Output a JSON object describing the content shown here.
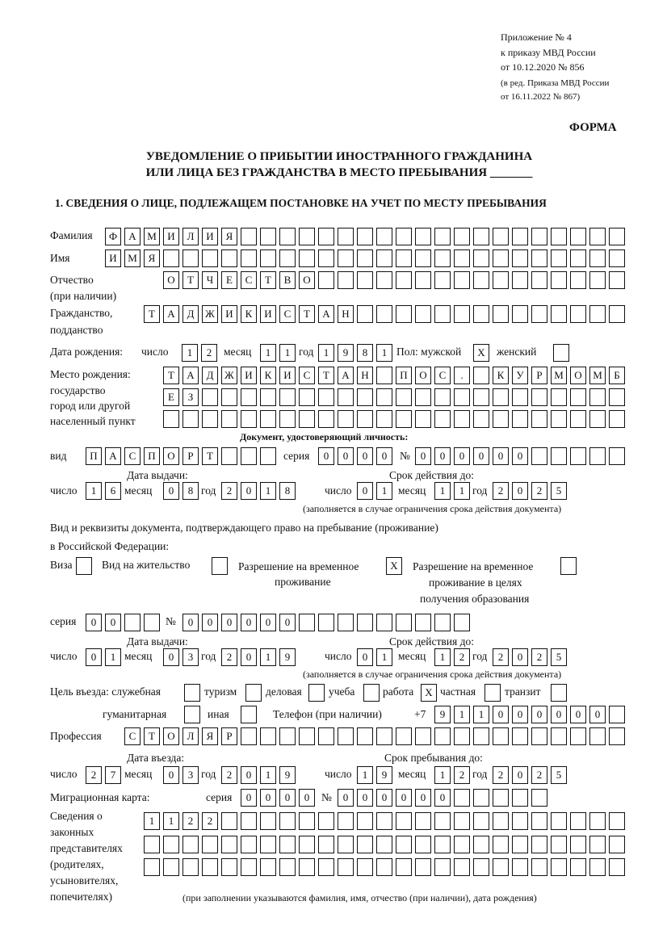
{
  "header": {
    "line1": "Приложение № 4",
    "line2": "к приказу МВД России",
    "line3": "от 10.12.2020 № 856",
    "line4": "(в ред. Приказа МВД России",
    "line5": "от 16.11.2022 № 867)",
    "forma": "ФОРМА"
  },
  "title": {
    "line1": "УВЕДОМЛЕНИЕ О ПРИБЫТИИ ИНОСТРАННОГО ГРАЖДАНИНА",
    "line2": "ИЛИ ЛИЦА БЕЗ ГРАЖДАНСТВА В МЕСТО ПРЕБЫВАНИЯ _______"
  },
  "section1": "1. СВЕДЕНИЯ О ЛИЦЕ, ПОДЛЕЖАЩЕМ ПОСТАНОВКЕ НА УЧЕТ ПО МЕСТУ ПРЕБЫВАНИЯ",
  "labels": {
    "surname": "Фамилия",
    "name": "Имя",
    "patronymic": "Отчество",
    "patronymic2": "(при наличии)",
    "citizenship": "Гражданство,",
    "citizenship2": "подданство",
    "birthdate": "Дата рождения:",
    "day": "число",
    "month": "месяц",
    "year": "год",
    "sex": "Пол: мужской",
    "female": "женский",
    "birthplace": "Место рождения:",
    "bp2": "государство",
    "bp3": "город или другой",
    "bp4": "населенный пункт",
    "iddoc": "Документ, удостоверяющий личность:",
    "kind": "вид",
    "series": "серия",
    "number": "№",
    "issue_date": "Дата выдачи:",
    "valid_until": "Срок действия до:",
    "validity_note": "(заполняется в случае ограничения срока действия документа)",
    "permit1": "Вид и реквизиты документа, подтверждающего право на пребывание (проживание)",
    "permit2": "в Российской Федерации:",
    "visa": "Виза",
    "residence": "Вид на жительство",
    "rvp1": "Разрешение на временное",
    "rvp2": "проживание",
    "rvpe1": "Разрешение на временное",
    "rvpe2": "проживание в целях",
    "rvpe3": "получения образования",
    "purpose": "Цель въезда: служебная",
    "tourism": "туризм",
    "business": "деловая",
    "study": "учеба",
    "work": "работа",
    "private": "частная",
    "transit": "транзит",
    "humanitarian": "гуманитарная",
    "other": "иная",
    "phone": "Телефон (при наличии)",
    "phone_prefix": "+7",
    "profession": "Профессия",
    "entry_date": "Дата въезда:",
    "stay_until": "Срок пребывания до:",
    "migration": "Миграционная карта:",
    "rep1": "Сведения о",
    "rep2": "законных",
    "rep3": "представителях",
    "rep4": "(родителях,",
    "rep5": "усыновителях,",
    "rep6": "попечителях)",
    "rep_note": "(при заполнении указываются фамилия, имя, отчество (при наличии), дата рождения)"
  },
  "cells": {
    "surname": [
      "Ф",
      "А",
      "М",
      "И",
      "Л",
      "И",
      "Я",
      "",
      "",
      "",
      "",
      "",
      "",
      "",
      "",
      "",
      "",
      "",
      "",
      "",
      "",
      "",
      "",
      "",
      "",
      "",
      ""
    ],
    "name": [
      "И",
      "М",
      "Я",
      "",
      "",
      "",
      "",
      "",
      "",
      "",
      "",
      "",
      "",
      "",
      "",
      "",
      "",
      "",
      "",
      "",
      "",
      "",
      "",
      "",
      "",
      "",
      ""
    ],
    "patronymic": [
      "О",
      "Т",
      "Ч",
      "Е",
      "С",
      "Т",
      "В",
      "О",
      "",
      "",
      "",
      "",
      "",
      "",
      "",
      "",
      "",
      "",
      "",
      "",
      "",
      "",
      "",
      ""
    ],
    "citizenship": [
      "Т",
      "А",
      "Д",
      "Ж",
      "И",
      "К",
      "И",
      "С",
      "Т",
      "А",
      "Н",
      "",
      "",
      "",
      "",
      "",
      "",
      "",
      "",
      "",
      "",
      "",
      "",
      "",
      ""
    ],
    "birth_day": [
      "1",
      "2"
    ],
    "birth_month": [
      "1",
      "1"
    ],
    "birth_year": [
      "1",
      "9",
      "8",
      "1"
    ],
    "male": [
      "X"
    ],
    "female": [
      ""
    ],
    "birthplace1": [
      "Т",
      "А",
      "Д",
      "Ж",
      "И",
      "К",
      "И",
      "С",
      "Т",
      "А",
      "Н",
      "",
      "П",
      "О",
      "С",
      ".",
      "",
      "К",
      "У",
      "Р",
      "М",
      "О",
      "М",
      "Б"
    ],
    "birthplace2": [
      "Е",
      "З",
      "",
      "",
      "",
      "",
      "",
      "",
      "",
      "",
      "",
      "",
      "",
      "",
      "",
      "",
      "",
      "",
      "",
      "",
      "",
      "",
      "",
      ""
    ],
    "birthplace3": [
      "",
      "",
      "",
      "",
      "",
      "",
      "",
      "",
      "",
      "",
      "",
      "",
      "",
      "",
      "",
      "",
      "",
      "",
      "",
      "",
      "",
      "",
      "",
      ""
    ],
    "doc_kind": [
      "П",
      "А",
      "С",
      "П",
      "О",
      "Р",
      "Т",
      "",
      "",
      ""
    ],
    "doc_series": [
      "0",
      "0",
      "0",
      "0"
    ],
    "doc_number": [
      "0",
      "0",
      "0",
      "0",
      "0",
      "0",
      "",
      "",
      "",
      "",
      ""
    ],
    "doc_issue_day": [
      "1",
      "6"
    ],
    "doc_issue_month": [
      "0",
      "8"
    ],
    "doc_issue_year": [
      "2",
      "0",
      "1",
      "8"
    ],
    "doc_valid_day": [
      "0",
      "1"
    ],
    "doc_valid_month": [
      "1",
      "1"
    ],
    "doc_valid_year": [
      "2",
      "0",
      "2",
      "5"
    ],
    "visa": [
      ""
    ],
    "residence": [
      ""
    ],
    "rvp": [
      "X"
    ],
    "rvp_edu": [
      ""
    ],
    "permit_series": [
      "0",
      "0",
      "",
      ""
    ],
    "permit_number": [
      "0",
      "0",
      "0",
      "0",
      "0",
      "0",
      "",
      "",
      "",
      "",
      "",
      "",
      "",
      "",
      ""
    ],
    "permit_issue_day": [
      "0",
      "1"
    ],
    "permit_issue_month": [
      "0",
      "3"
    ],
    "permit_issue_year": [
      "2",
      "0",
      "1",
      "9"
    ],
    "permit_valid_day": [
      "0",
      "1"
    ],
    "permit_valid_month": [
      "1",
      "2"
    ],
    "permit_valid_year": [
      "2",
      "0",
      "2",
      "5"
    ],
    "p_service": [
      ""
    ],
    "p_tourism": [
      ""
    ],
    "p_business": [
      ""
    ],
    "p_study": [
      ""
    ],
    "p_work": [
      "X"
    ],
    "p_private": [
      ""
    ],
    "p_transit": [
      ""
    ],
    "p_humanitarian": [
      ""
    ],
    "p_other": [
      ""
    ],
    "phone": [
      "9",
      "1",
      "1",
      "0",
      "0",
      "0",
      "0",
      "0",
      "0",
      ""
    ],
    "profession": [
      "С",
      "Т",
      "О",
      "Л",
      "Я",
      "Р",
      "",
      "",
      "",
      "",
      "",
      "",
      "",
      "",
      "",
      "",
      "",
      "",
      "",
      "",
      "",
      "",
      "",
      "",
      "",
      ""
    ],
    "entry_day": [
      "2",
      "7"
    ],
    "entry_month": [
      "0",
      "3"
    ],
    "entry_year": [
      "2",
      "0",
      "1",
      "9"
    ],
    "stay_day": [
      "1",
      "9"
    ],
    "stay_month": [
      "1",
      "2"
    ],
    "stay_year": [
      "2",
      "0",
      "2",
      "5"
    ],
    "mig_series": [
      "0",
      "0",
      "0",
      "0"
    ],
    "mig_number": [
      "0",
      "0",
      "0",
      "0",
      "0",
      "0",
      "",
      "",
      "",
      "",
      ""
    ],
    "rep1": [
      "1",
      "1",
      "2",
      "2",
      "",
      "",
      "",
      "",
      "",
      "",
      "",
      "",
      "",
      "",
      "",
      "",
      "",
      "",
      "",
      "",
      "",
      "",
      "",
      "",
      ""
    ],
    "rep2": [
      "",
      "",
      "",
      "",
      "",
      "",
      "",
      "",
      "",
      "",
      "",
      "",
      "",
      "",
      "",
      "",
      "",
      "",
      "",
      "",
      "",
      "",
      "",
      "",
      ""
    ],
    "rep3": [
      "",
      "",
      "",
      "",
      "",
      "",
      "",
      "",
      "",
      "",
      "",
      "",
      "",
      "",
      "",
      "",
      "",
      "",
      "",
      "",
      "",
      "",
      "",
      "",
      ""
    ]
  }
}
